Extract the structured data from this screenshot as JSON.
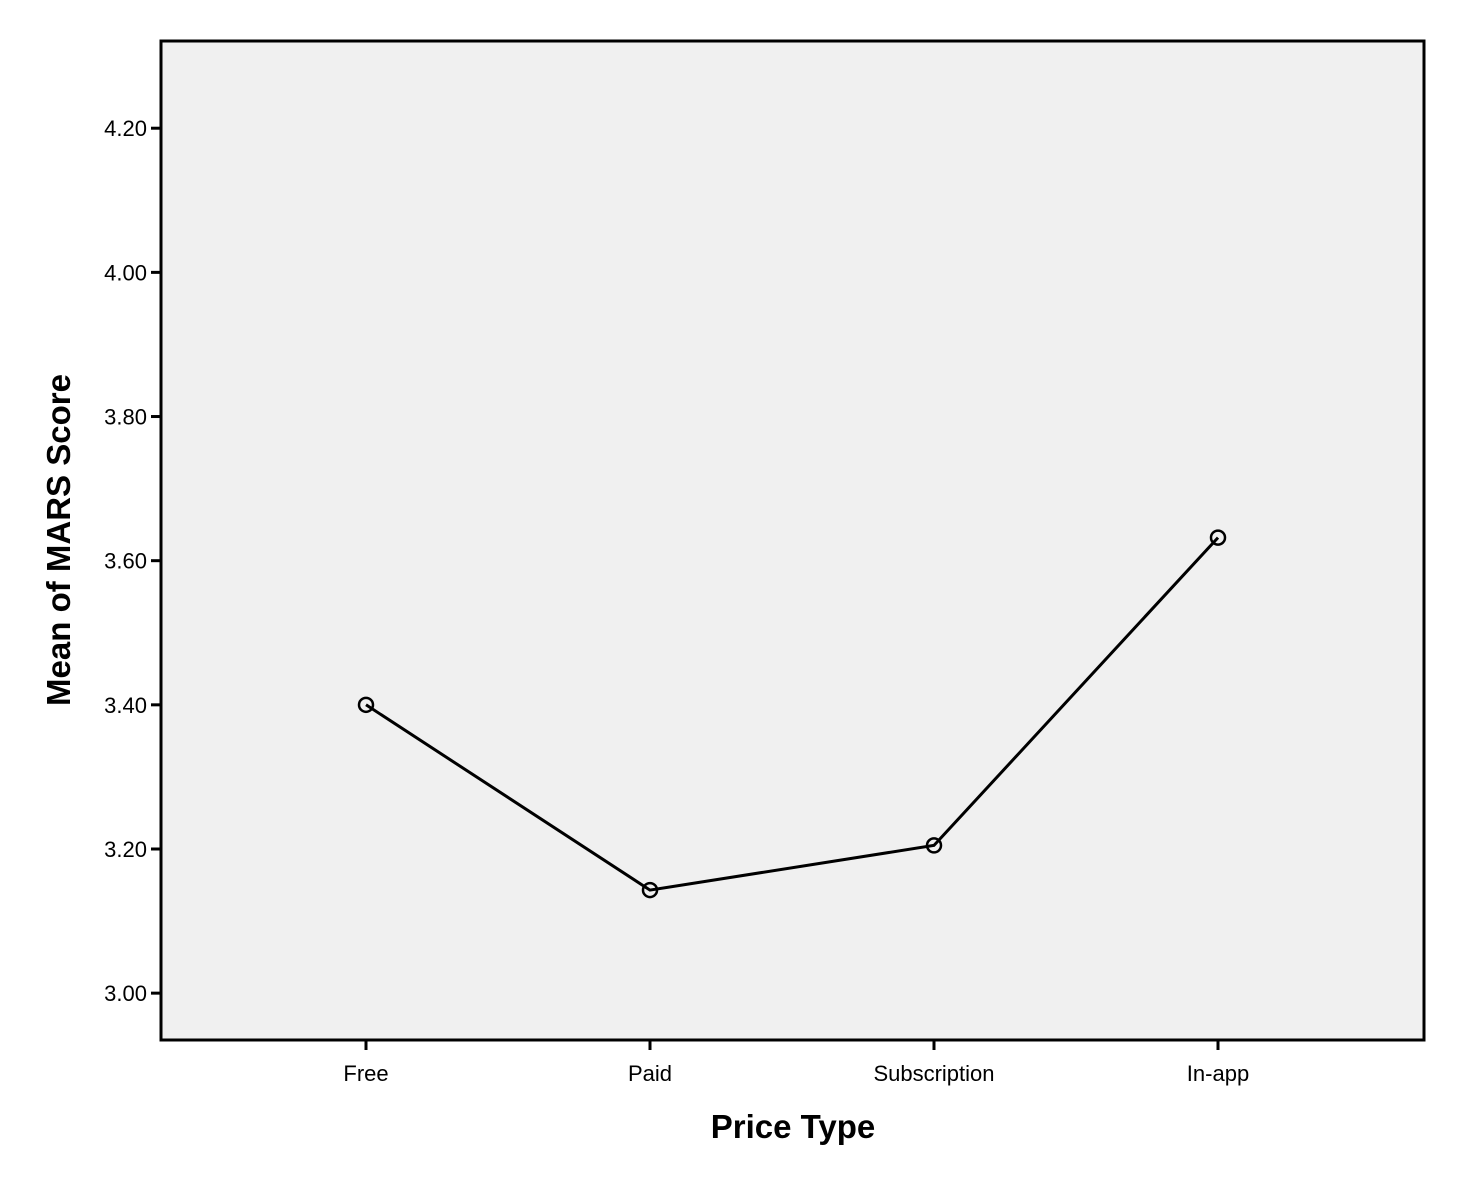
{
  "chart_data": {
    "type": "line",
    "title": "",
    "xlabel": "Price Type",
    "ylabel": "Mean of MARS Score",
    "categories": [
      "Free",
      "Paid",
      "Subscription",
      "In-app"
    ],
    "series": [
      {
        "values": [
          3.4,
          3.143,
          3.205,
          3.632
        ]
      }
    ],
    "ylim": [
      2.935,
      4.321
    ],
    "yticks": [
      "3.00",
      "3.20",
      "3.40",
      "3.60",
      "3.80",
      "4.00",
      "4.20"
    ],
    "ytick_values": [
      3.0,
      3.2,
      3.4,
      3.6,
      3.8,
      4.0,
      4.2
    ],
    "grid": false,
    "legend": "none",
    "colors": {
      "plot_background": "#f0f0f0",
      "line": "#000000",
      "frame": "#000000"
    }
  }
}
